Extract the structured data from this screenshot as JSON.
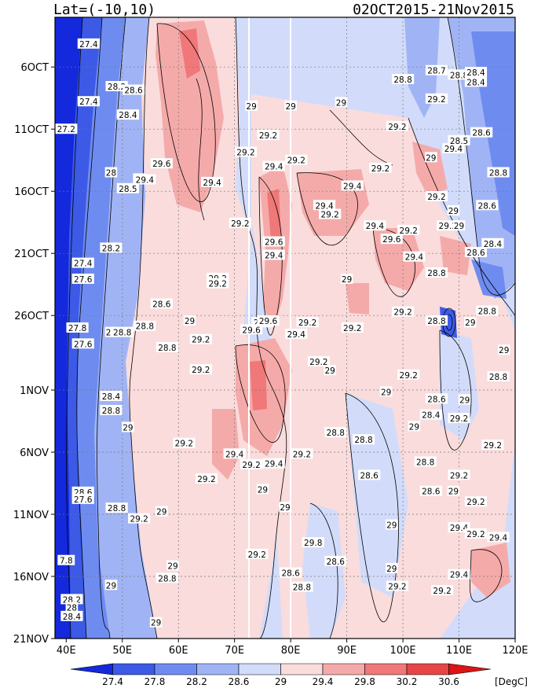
{
  "chart_data": {
    "type": "heatmap",
    "title_left": "Lat=(-10,10)",
    "title_right": "02OCT2015-21Nov2015",
    "x_ticks": [
      "40E",
      "50E",
      "60E",
      "70E",
      "80E",
      "90E",
      "100E",
      "110E",
      "120E"
    ],
    "x_range": [
      38,
      120
    ],
    "y_ticks": [
      "6OCT",
      "11OCT",
      "16OCT",
      "21OCT",
      "26OCT",
      "1NOV",
      "6NOV",
      "11NOV",
      "16NOV",
      "21NOV"
    ],
    "colorbar": {
      "levels": [
        "27.4",
        "27.8",
        "28.2",
        "28.6",
        "29",
        "29.4",
        "29.8",
        "30.2",
        "30.6"
      ],
      "unit": "[DegC]",
      "colors": [
        "#1428dc",
        "#3c5ae6",
        "#6e8cf0",
        "#a0b4f5",
        "#d2dcfa",
        "#fadcdc",
        "#f5aaaa",
        "#f07878",
        "#e64646",
        "#dc1414"
      ]
    },
    "grid": "dotted",
    "contour_labels": [
      {
        "lon": 44,
        "day": 3,
        "label": "27.4"
      },
      {
        "lon": 49,
        "day": 7.8,
        "label": "28.2"
      },
      {
        "lon": 52,
        "day": 8.2,
        "label": "28.6"
      },
      {
        "lon": 44,
        "day": 9.5,
        "label": "27.4"
      },
      {
        "lon": 51,
        "day": 11,
        "label": "28.4"
      },
      {
        "lon": 40,
        "day": 12.6,
        "label": "27.2"
      },
      {
        "lon": 57,
        "day": 16.5,
        "label": "29.6"
      },
      {
        "lon": 48,
        "day": 17.5,
        "label": "28"
      },
      {
        "lon": 53,
        "day": 18.2,
        "label": "29"
      },
      {
        "lon": 54,
        "day": 18.3,
        "label": "29.4"
      },
      {
        "lon": 51,
        "day": 19.3,
        "label": "28.5"
      },
      {
        "lon": 72,
        "day": 15.2,
        "label": "29.2"
      },
      {
        "lon": 66,
        "day": 18.6,
        "label": "29.4"
      },
      {
        "lon": 76,
        "day": 13.3,
        "label": "29.2"
      },
      {
        "lon": 77,
        "day": 16.8,
        "label": "29.4"
      },
      {
        "lon": 81,
        "day": 16.1,
        "label": "29.2"
      },
      {
        "lon": 80,
        "day": 10,
        "label": "29"
      },
      {
        "lon": 73,
        "day": 10,
        "label": "29"
      },
      {
        "lon": 89,
        "day": 9.6,
        "label": "29"
      },
      {
        "lon": 100,
        "day": 7,
        "label": "28.8"
      },
      {
        "lon": 106,
        "day": 6,
        "label": "28.7"
      },
      {
        "lon": 110,
        "day": 6.5,
        "label": "28.8"
      },
      {
        "lon": 113,
        "day": 6.2,
        "label": "28.4"
      },
      {
        "lon": 113,
        "day": 7.3,
        "label": "28.4"
      },
      {
        "lon": 106,
        "day": 9.2,
        "label": "29.2"
      },
      {
        "lon": 99,
        "day": 12.3,
        "label": "29.2"
      },
      {
        "lon": 109,
        "day": 14.8,
        "label": "29.4"
      },
      {
        "lon": 105,
        "day": 15.8,
        "label": "29"
      },
      {
        "lon": 110,
        "day": 13.9,
        "label": "28.5"
      },
      {
        "lon": 114,
        "day": 13,
        "label": "28.6"
      },
      {
        "lon": 117,
        "day": 17.5,
        "label": "28.8"
      },
      {
        "lon": 96,
        "day": 17,
        "label": "29.2"
      },
      {
        "lon": 91,
        "day": 19,
        "label": "29.4"
      },
      {
        "lon": 106,
        "day": 20.2,
        "label": "29.2"
      },
      {
        "lon": 86,
        "day": 21.2,
        "label": "29.4"
      },
      {
        "lon": 87,
        "day": 22.2,
        "label": "29.2"
      },
      {
        "lon": 95,
        "day": 23.5,
        "label": "29.4"
      },
      {
        "lon": 101,
        "day": 24,
        "label": "29.2"
      },
      {
        "lon": 98,
        "day": 25,
        "label": "29.6"
      },
      {
        "lon": 102,
        "day": 27,
        "label": "29.4"
      },
      {
        "lon": 108,
        "day": 23.5,
        "label": "29.2"
      },
      {
        "lon": 110,
        "day": 23.5,
        "label": "29"
      },
      {
        "lon": 109,
        "day": 21.8,
        "label": "29"
      },
      {
        "lon": 115,
        "day": 21.2,
        "label": "28.6"
      },
      {
        "lon": 116,
        "day": 25.5,
        "label": "28.4"
      },
      {
        "lon": 113,
        "day": 26.5,
        "label": "28.6"
      },
      {
        "lon": 106,
        "day": 28.8,
        "label": "28.8"
      },
      {
        "lon": 48,
        "day": 26,
        "label": "28.2"
      },
      {
        "lon": 43,
        "day": 27.7,
        "label": "27.4"
      },
      {
        "lon": 43,
        "day": 29.5,
        "label": "27.6"
      },
      {
        "lon": 71,
        "day": 23.2,
        "label": "29.2"
      },
      {
        "lon": 77,
        "day": 25.3,
        "label": "29.6"
      },
      {
        "lon": 77,
        "day": 26.8,
        "label": "29.4"
      },
      {
        "lon": 67,
        "day": 29.4,
        "label": "29.2"
      },
      {
        "lon": 67,
        "day": 30,
        "label": "29.2"
      },
      {
        "lon": 90,
        "day": 29.5,
        "label": "29"
      },
      {
        "lon": 57,
        "day": 32.3,
        "label": "28.6"
      },
      {
        "lon": 42,
        "day": 35,
        "label": "27.8"
      },
      {
        "lon": 48,
        "day": 35.5,
        "label": "28"
      },
      {
        "lon": 50,
        "day": 35.5,
        "label": "28.8"
      },
      {
        "lon": 54,
        "day": 34.8,
        "label": "28.8"
      },
      {
        "lon": 62,
        "day": 34.2,
        "label": "29"
      },
      {
        "lon": 43,
        "day": 36.8,
        "label": "27.6"
      },
      {
        "lon": 64,
        "day": 36.3,
        "label": "29.2"
      },
      {
        "lon": 58,
        "day": 37.2,
        "label": "28.8"
      },
      {
        "lon": 75,
        "day": 34.4,
        "label": "29.2"
      },
      {
        "lon": 73,
        "day": 35.2,
        "label": "29.6"
      },
      {
        "lon": 76,
        "day": 34.2,
        "label": "29.6"
      },
      {
        "lon": 83,
        "day": 34.4,
        "label": "29.2"
      },
      {
        "lon": 81,
        "day": 35.7,
        "label": "29.4"
      },
      {
        "lon": 91,
        "day": 35,
        "label": "29.2"
      },
      {
        "lon": 100,
        "day": 33.2,
        "label": "29.2"
      },
      {
        "lon": 106,
        "day": 34.2,
        "label": "28.8"
      },
      {
        "lon": 112,
        "day": 34.4,
        "label": "29"
      },
      {
        "lon": 115,
        "day": 33.1,
        "label": "28.8"
      },
      {
        "lon": 64,
        "day": 39.7,
        "label": "29.2"
      },
      {
        "lon": 85,
        "day": 38.8,
        "label": "29.2"
      },
      {
        "lon": 87,
        "day": 39.8,
        "label": "29"
      },
      {
        "lon": 101,
        "day": 40.3,
        "label": "29.2"
      },
      {
        "lon": 118,
        "day": 37.5,
        "label": "29"
      },
      {
        "lon": 117,
        "day": 40.5,
        "label": "28.8"
      },
      {
        "lon": 97,
        "day": 42.2,
        "label": "29"
      },
      {
        "lon": 106,
        "day": 43,
        "label": "28.6"
      },
      {
        "lon": 111,
        "day": 43.1,
        "label": "29"
      },
      {
        "lon": 48,
        "day": 42.7,
        "label": "28.4"
      },
      {
        "lon": 48,
        "day": 44.3,
        "label": "28.8"
      },
      {
        "lon": 51,
        "day": 46.2,
        "label": "29"
      },
      {
        "lon": 105,
        "day": 44.8,
        "label": "28.4"
      },
      {
        "lon": 110,
        "day": 45.2,
        "label": "29.2"
      },
      {
        "lon": 102,
        "day": 46.1,
        "label": "29"
      },
      {
        "lon": 88,
        "day": 46.8,
        "label": "28.8"
      },
      {
        "lon": 93,
        "day": 47.6,
        "label": "28.8"
      },
      {
        "lon": 61,
        "day": 48,
        "label": "29.2"
      },
      {
        "lon": 70,
        "day": 49.2,
        "label": "29.4"
      },
      {
        "lon": 73,
        "day": 50.4,
        "label": "29.2"
      },
      {
        "lon": 77,
        "day": 50.3,
        "label": "29.4"
      },
      {
        "lon": 82,
        "day": 49.2,
        "label": "29.2"
      },
      {
        "lon": 116,
        "day": 48.2,
        "label": "29.2"
      },
      {
        "lon": 104,
        "day": 50.1,
        "label": "28.8"
      },
      {
        "lon": 94,
        "day": 51.6,
        "label": "28.6"
      },
      {
        "lon": 110,
        "day": 51.6,
        "label": "29.2"
      },
      {
        "lon": 65,
        "day": 52,
        "label": "29.2"
      },
      {
        "lon": 43,
        "day": 53.5,
        "label": "28.6"
      },
      {
        "lon": 43,
        "day": 54.3,
        "label": "27.6"
      },
      {
        "lon": 105,
        "day": 53.4,
        "label": "28.6"
      },
      {
        "lon": 109,
        "day": 53.4,
        "label": "29"
      },
      {
        "lon": 75,
        "day": 53.2,
        "label": "29"
      },
      {
        "lon": 49,
        "day": 55.3,
        "label": "28.8"
      },
      {
        "lon": 57,
        "day": 55.7,
        "label": "29"
      },
      {
        "lon": 53,
        "day": 56.5,
        "label": "29.2"
      },
      {
        "lon": 79,
        "day": 55.2,
        "label": "29"
      },
      {
        "lon": 113,
        "day": 54.6,
        "label": "29.2"
      },
      {
        "lon": 98,
        "day": 57.2,
        "label": "29"
      },
      {
        "lon": 110,
        "day": 57.5,
        "label": "29.4"
      },
      {
        "lon": 113,
        "day": 58.2,
        "label": "29.2"
      },
      {
        "lon": 117,
        "day": 58.6,
        "label": "29.4"
      },
      {
        "lon": 84,
        "day": 59.2,
        "label": "29.8"
      },
      {
        "lon": 74,
        "day": 60.5,
        "label": "29.2"
      },
      {
        "lon": 88,
        "day": 61.3,
        "label": "28.6"
      },
      {
        "lon": 40,
        "day": 61.2,
        "label": "7.8"
      },
      {
        "lon": 59,
        "day": 61.8,
        "label": "29"
      },
      {
        "lon": 98,
        "day": 62.1,
        "label": "29"
      },
      {
        "lon": 58,
        "day": 63.2,
        "label": "28.8"
      },
      {
        "lon": 80,
        "day": 62.6,
        "label": "28.6"
      },
      {
        "lon": 110,
        "day": 62.8,
        "label": "29.4"
      },
      {
        "lon": 48,
        "day": 64,
        "label": "29"
      },
      {
        "lon": 82,
        "day": 64.2,
        "label": "28.8"
      },
      {
        "lon": 99,
        "day": 64.1,
        "label": "29.2"
      },
      {
        "lon": 107,
        "day": 64.6,
        "label": "29.2"
      },
      {
        "lon": 41,
        "day": 65.6,
        "label": "28.2"
      },
      {
        "lon": 41,
        "day": 66.5,
        "label": "28"
      },
      {
        "lon": 41,
        "day": 67.5,
        "label": "28.4"
      },
      {
        "lon": 56,
        "day": 68.2,
        "label": "29"
      }
    ]
  }
}
